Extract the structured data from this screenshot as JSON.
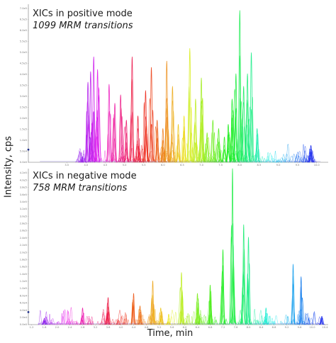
{
  "chart_data": [
    {
      "type": "line",
      "title": "XICs in positive mode",
      "subtitle": "1099 MRM transitions",
      "xlabel": "",
      "ylabel": "",
      "xlim": [
        2.5,
        10.3
      ],
      "ylim": [
        0,
        7.5
      ],
      "x_ticks": [
        "3.5",
        "4.0",
        "4.5",
        "5.0",
        "5.5",
        "6.0",
        "6.5",
        "7.0",
        "7.5",
        "8.0",
        "8.5",
        "9.0",
        "9.5",
        "10.0"
      ],
      "y_ticks": [
        "0.0e0",
        "5.0e4",
        "1.0e5",
        "1.5e5",
        "2.0e5",
        "2.5e5",
        "3.0e5",
        "3.5e5",
        "4.0e5",
        "4.5e5",
        "5.0e5",
        "5.5e5",
        "6.0e5",
        "6.5e5",
        "7.0e5"
      ],
      "grid": false,
      "color_scale": "rainbow by retention time (violet to blue)",
      "series": [
        {
          "x": [
            3.9,
            4.05,
            4.12,
            4.2,
            4.3,
            4.6,
            4.75,
            4.9,
            5.05,
            5.2,
            5.35,
            5.55,
            5.7,
            5.85,
            6.0,
            6.1,
            6.25,
            6.4,
            6.55,
            6.7,
            6.85,
            7.0,
            7.15,
            7.3,
            7.45,
            7.6,
            7.7,
            7.8,
            7.9,
            8.0,
            8.1,
            8.2,
            8.3,
            8.45,
            9.85
          ],
          "y": [
            0.25,
            3.8,
            4.3,
            5.0,
            4.4,
            3.7,
            2.8,
            3.2,
            2.0,
            5.0,
            2.2,
            3.4,
            4.5,
            2.0,
            1.6,
            4.8,
            3.6,
            1.8,
            2.2,
            5.4,
            3.0,
            4.0,
            1.4,
            2.0,
            1.6,
            1.2,
            1.8,
            3.0,
            4.2,
            7.2,
            3.6,
            4.2,
            5.2,
            1.6,
            0.8
          ]
        }
      ]
    },
    {
      "type": "line",
      "title": "XICs in negative mode",
      "subtitle": "758 MRM transitions",
      "xlabel": "Time, min",
      "ylabel": "Intensity, cps",
      "xlim": [
        1.1,
        10.5
      ],
      "ylim": [
        0,
        7.5
      ],
      "x_ticks": [
        "1.2",
        "1.6",
        "2.0",
        "2.4",
        "2.8",
        "3.2",
        "3.6",
        "4.0",
        "4.4",
        "4.8",
        "5.2",
        "5.6",
        "6.0",
        "6.4",
        "6.8",
        "7.2",
        "7.6",
        "8.0",
        "8.4",
        "8.8",
        "9.2",
        "9.6",
        "10.0",
        "10.4"
      ],
      "y_ticks": [
        "0.0e0",
        "2.0e4",
        "4.0e4",
        "6.0e4",
        "8.0e4",
        "1.0e5",
        "1.2e5",
        "1.4e5",
        "1.6e5",
        "1.8e5",
        "2.0e5",
        "2.2e5",
        "2.4e5",
        "2.6e5",
        "2.8e5",
        "3.0e5",
        "3.2e5",
        "3.4e5",
        "3.6e5",
        "3.8e5",
        "4.0e5",
        "4.2e5"
      ],
      "grid": false,
      "color_scale": "rainbow by retention time (violet to blue)",
      "series": [
        {
          "x": [
            1.6,
            2.8,
            3.6,
            4.4,
            4.6,
            5.0,
            5.25,
            5.5,
            5.9,
            6.4,
            6.8,
            7.2,
            7.5,
            7.85,
            8.0,
            8.55,
            9.4,
            9.65,
            10.3
          ],
          "y": [
            0.3,
            0.8,
            1.3,
            1.5,
            0.9,
            2.1,
            0.8,
            0.5,
            2.5,
            1.5,
            1.9,
            3.6,
            7.5,
            4.8,
            4.2,
            0.8,
            2.9,
            2.3,
            0.4
          ]
        }
      ]
    }
  ]
}
